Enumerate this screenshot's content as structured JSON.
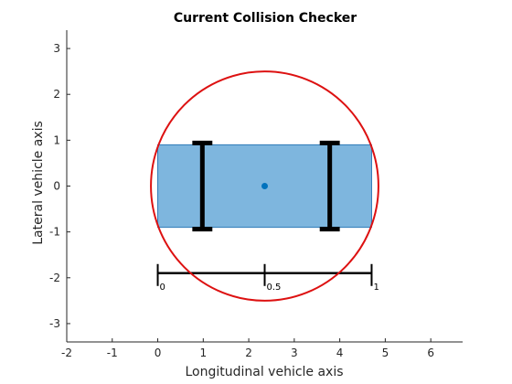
{
  "chart_data": {
    "type": "diagram",
    "title": "Current Collision Checker",
    "xlabel": "Longitudinal vehicle axis",
    "ylabel": "Lateral vehicle axis",
    "xlim": [
      -2,
      6.7
    ],
    "ylim": [
      -3.4,
      3.4
    ],
    "xticks": [
      -2,
      -1,
      0,
      1,
      2,
      3,
      4,
      5,
      6
    ],
    "yticks": [
      -3,
      -2,
      -1,
      0,
      1,
      2,
      3
    ],
    "vehicle": {
      "x": [
        0,
        4.7
      ],
      "y": [
        -0.9,
        0.9
      ],
      "fill_color": "#7EB6DE",
      "edge_color": "#2E7AB8"
    },
    "axles": [
      {
        "x": 0.98,
        "y_half": 0.94,
        "cap_half_width": 0.22
      },
      {
        "x": 3.78,
        "y_half": 0.94,
        "cap_half_width": 0.22
      }
    ],
    "center_point": {
      "x": 2.35,
      "y": 0,
      "color": "#0072BD"
    },
    "circle": {
      "cx": 2.35,
      "cy": 0,
      "r": 2.5,
      "color": "#DD1111"
    },
    "scale_bar": {
      "y": -1.9,
      "x_start": 0,
      "x_end": 4.7,
      "ticks": [
        {
          "x": 0,
          "label": "0"
        },
        {
          "x": 2.35,
          "label": "0.5"
        },
        {
          "x": 4.7,
          "label": "1"
        }
      ]
    }
  }
}
